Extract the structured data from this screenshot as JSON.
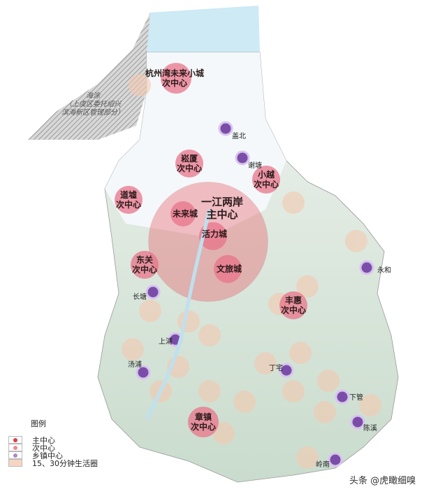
{
  "map": {
    "hatched_area_label": [
      "海涂",
      "（上虞区委托绍兴",
      "滨海新区管理部分）"
    ],
    "main_center": {
      "name": "一江两岸",
      "type": "主中心",
      "sub_nodes": [
        "未来城",
        "活力城",
        "文旅城"
      ]
    },
    "sub_centers": [
      {
        "name": "杭州湾未来小城",
        "type": "次中心"
      },
      {
        "name": "崧厦",
        "type": "次中心"
      },
      {
        "name": "小越",
        "type": "次中心"
      },
      {
        "name": "道墟",
        "type": "次中心"
      },
      {
        "name": "东关",
        "type": "次中心"
      },
      {
        "name": "丰惠",
        "type": "次中心"
      },
      {
        "name": "章镇",
        "type": "次中心"
      }
    ],
    "towns": [
      "盖北",
      "谢塘",
      "永和",
      "长塘",
      "上浦",
      "汤浦",
      "丁宅",
      "下管",
      "陈溪",
      "岭南"
    ],
    "colors": {
      "main": "#e8505b",
      "sub": "#e9748a",
      "town": "#7a4ea8",
      "life_circle": "#f3c9b0",
      "water": "#cdeaf5"
    }
  },
  "legend": {
    "title": "图例",
    "items": [
      {
        "label": "主中心",
        "color": "#e23b44"
      },
      {
        "label": "次中心",
        "color": "#ef8a8f"
      },
      {
        "label": "乡镇中心",
        "color": "#a98ac9"
      },
      {
        "label": "15、30分钟生活圈",
        "color": "#f6d6c2"
      }
    ]
  },
  "watermark": "头条 @虎瞰细嗅"
}
